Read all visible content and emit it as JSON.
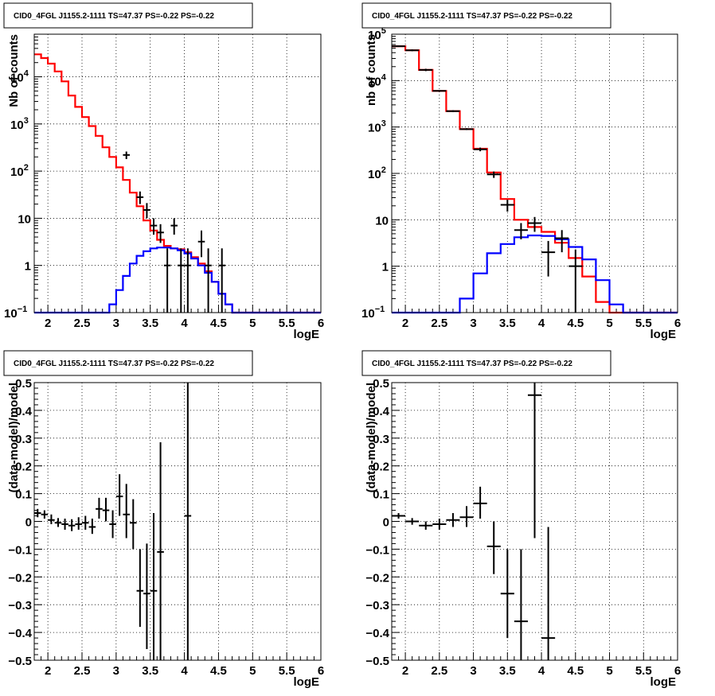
{
  "colors": {
    "data": "#000000",
    "total_model": "#ff0000",
    "source_model": "#0000ff",
    "grid": "#000000"
  },
  "chart_data": [
    {
      "id": "counts-fine",
      "type": "histogram",
      "title": "CID0_4FGL J1155.2-1111 TS=47.37 PS=-0.22 PS=-0.22",
      "xlabel": "logE",
      "ylabel": "Nb of counts",
      "xlim": [
        1.8,
        6.0
      ],
      "ylim": [
        0.1,
        80000
      ],
      "yscale": "log",
      "grid": true,
      "xticks": [
        {
          "v": 2,
          "label": "2"
        },
        {
          "v": 2.5,
          "label": "2.5"
        },
        {
          "v": 3,
          "label": "3"
        },
        {
          "v": 3.5,
          "label": "3.5"
        },
        {
          "v": 4,
          "label": "4"
        },
        {
          "v": 4.5,
          "label": "4.5"
        },
        {
          "v": 5,
          "label": "5"
        },
        {
          "v": 5.5,
          "label": "5.5"
        },
        {
          "v": 6,
          "label": "6"
        }
      ],
      "yticks": [
        {
          "v": 0.1,
          "base": "10",
          "exp": "−1"
        },
        {
          "v": 1,
          "base": "1",
          "exp": ""
        },
        {
          "v": 10,
          "base": "10",
          "exp": ""
        },
        {
          "v": 100,
          "base": "10",
          "exp": "2"
        },
        {
          "v": 1000,
          "base": "10",
          "exp": "3"
        },
        {
          "v": 10000,
          "base": "10",
          "exp": "4"
        }
      ],
      "bin_edges": [
        1.8,
        1.9,
        2.0,
        2.1,
        2.2,
        2.3,
        2.4,
        2.5,
        2.6,
        2.7,
        2.8,
        2.9,
        3.0,
        3.1,
        3.2,
        3.3,
        3.4,
        3.5,
        3.6,
        3.7,
        3.8,
        3.9,
        4.0,
        4.1,
        4.2,
        4.3,
        4.4,
        4.5,
        4.6,
        4.7,
        4.8,
        4.9,
        5.0,
        5.1,
        5.2,
        5.3,
        5.4,
        5.5,
        5.6,
        5.7,
        5.8,
        5.9,
        6.0
      ],
      "series": [
        {
          "role": "total_model",
          "values": [
            30000,
            25000,
            19000,
            13000,
            8000,
            4000,
            2300,
            1400,
            900,
            560,
            320,
            200,
            120,
            65,
            35,
            18,
            9,
            5.5,
            3.5,
            2.6,
            2.3,
            2.2,
            1.9,
            1.5,
            1.1,
            0.75,
            0.45,
            0.25,
            0.15,
            0.1,
            0.1,
            0.1,
            0.1,
            0.1,
            0.1,
            0.1,
            0.1,
            0.1,
            0.1,
            0.1,
            0.1,
            0.1
          ]
        },
        {
          "role": "source_model",
          "values": [
            0.1,
            0.1,
            0.1,
            0.1,
            0.1,
            0.1,
            0.1,
            0.1,
            0.1,
            0.1,
            0.1,
            0.15,
            0.3,
            0.6,
            1.1,
            1.6,
            2.0,
            2.3,
            2.4,
            2.4,
            2.3,
            2.1,
            1.8,
            1.4,
            1.0,
            0.7,
            0.45,
            0.25,
            0.15,
            0.1,
            0.1,
            0.1,
            0.1,
            0.1,
            0.1,
            0.1,
            0.1,
            0.1,
            0.1,
            0.1,
            0.1,
            0.1
          ]
        }
      ],
      "points": [
        {
          "x": 3.15,
          "y": 220,
          "xerr": 0.05,
          "ylo": 180,
          "yhi": 260
        },
        {
          "x": 3.35,
          "y": 28,
          "xerr": 0.05,
          "ylo": 20,
          "yhi": 37
        },
        {
          "x": 3.45,
          "y": 15,
          "xerr": 0.05,
          "ylo": 10,
          "yhi": 21
        },
        {
          "x": 3.55,
          "y": 7,
          "xerr": 0.05,
          "ylo": 4.5,
          "yhi": 10
        },
        {
          "x": 3.65,
          "y": 5,
          "xerr": 0.05,
          "ylo": 3,
          "yhi": 7.5
        },
        {
          "x": 3.75,
          "y": 1,
          "xerr": 0.05,
          "ylo": 0.1,
          "yhi": 2.3
        },
        {
          "x": 3.85,
          "y": 7,
          "xerr": 0.05,
          "ylo": 4.5,
          "yhi": 10
        },
        {
          "x": 3.95,
          "y": 1,
          "xerr": 0.05,
          "ylo": 0.1,
          "yhi": 2.3
        },
        {
          "x": 4.05,
          "y": 1,
          "xerr": 0.05,
          "ylo": 0.1,
          "yhi": 2.3
        },
        {
          "x": 4.25,
          "y": 3.2,
          "xerr": 0.05,
          "ylo": 1.5,
          "yhi": 5.5
        },
        {
          "x": 4.35,
          "y": 1,
          "xerr": 0.05,
          "ylo": 0.1,
          "yhi": 2.3
        },
        {
          "x": 4.55,
          "y": 1,
          "xerr": 0.05,
          "ylo": 0.1,
          "yhi": 2.3
        }
      ]
    },
    {
      "id": "counts-coarse",
      "type": "histogram",
      "title": "CID0_4FGL J1155.2-1111 TS=47.37 PS=-0.22 PS=-0.22",
      "xlabel": "logE",
      "ylabel": "nb of counts",
      "xlim": [
        1.8,
        6.0
      ],
      "ylim": [
        0.1,
        100000
      ],
      "yscale": "log",
      "grid": true,
      "xticks": [
        {
          "v": 2,
          "label": "2"
        },
        {
          "v": 2.5,
          "label": "2.5"
        },
        {
          "v": 3,
          "label": "3"
        },
        {
          "v": 3.5,
          "label": "3.5"
        },
        {
          "v": 4,
          "label": "4"
        },
        {
          "v": 4.5,
          "label": "4.5"
        },
        {
          "v": 5,
          "label": "5"
        },
        {
          "v": 5.5,
          "label": "5.5"
        },
        {
          "v": 6,
          "label": "6"
        }
      ],
      "yticks": [
        {
          "v": 0.1,
          "base": "10",
          "exp": "−1"
        },
        {
          "v": 1,
          "base": "1",
          "exp": ""
        },
        {
          "v": 10,
          "base": "10",
          "exp": ""
        },
        {
          "v": 100,
          "base": "10",
          "exp": "2"
        },
        {
          "v": 1000,
          "base": "10",
          "exp": "3"
        },
        {
          "v": 10000,
          "base": "10",
          "exp": "4"
        },
        {
          "v": 100000,
          "base": "10",
          "exp": "5"
        }
      ],
      "bin_edges": [
        1.8,
        2.0,
        2.2,
        2.4,
        2.6,
        2.8,
        3.0,
        3.2,
        3.4,
        3.6,
        3.8,
        4.0,
        4.2,
        4.4,
        4.6,
        4.8,
        5.0,
        5.2,
        5.4,
        5.6,
        5.8,
        6.0
      ],
      "series": [
        {
          "role": "total_model",
          "values": [
            55000,
            45000,
            17000,
            6000,
            2200,
            900,
            340,
            105,
            28,
            10,
            7,
            5.5,
            3.2,
            1.5,
            0.6,
            0.17,
            0.1,
            0.1,
            0.1,
            0.1,
            0.1
          ]
        },
        {
          "role": "source_model",
          "values": [
            0.1,
            0.1,
            0.1,
            0.1,
            0.1,
            0.2,
            0.7,
            1.9,
            3.0,
            4.2,
            4.6,
            4.5,
            3.8,
            2.6,
            1.4,
            0.5,
            0.15,
            0.1,
            0.1,
            0.1,
            0.1
          ]
        }
      ],
      "points": [
        {
          "x": 1.9,
          "y": 55000,
          "xerr": 0.1,
          "ylo": 53000,
          "yhi": 57000
        },
        {
          "x": 2.1,
          "y": 45000,
          "xerr": 0.1,
          "ylo": 43000,
          "yhi": 47000
        },
        {
          "x": 2.3,
          "y": 17000,
          "xerr": 0.1,
          "ylo": 16000,
          "yhi": 18000
        },
        {
          "x": 2.5,
          "y": 6000,
          "xerr": 0.1,
          "ylo": 5800,
          "yhi": 6200
        },
        {
          "x": 2.7,
          "y": 2200,
          "xerr": 0.1,
          "ylo": 2100,
          "yhi": 2300
        },
        {
          "x": 2.9,
          "y": 900,
          "xerr": 0.1,
          "ylo": 860,
          "yhi": 940
        },
        {
          "x": 3.1,
          "y": 330,
          "xerr": 0.1,
          "ylo": 300,
          "yhi": 360
        },
        {
          "x": 3.3,
          "y": 95,
          "xerr": 0.1,
          "ylo": 80,
          "yhi": 110
        },
        {
          "x": 3.5,
          "y": 21,
          "xerr": 0.1,
          "ylo": 15,
          "yhi": 27
        },
        {
          "x": 3.7,
          "y": 6,
          "xerr": 0.1,
          "ylo": 3.8,
          "yhi": 8.5
        },
        {
          "x": 3.9,
          "y": 8.5,
          "xerr": 0.1,
          "ylo": 5.5,
          "yhi": 11.5
        },
        {
          "x": 4.1,
          "y": 2,
          "xerr": 0.1,
          "ylo": 0.6,
          "yhi": 3.5
        },
        {
          "x": 4.3,
          "y": 4,
          "xerr": 0.1,
          "ylo": 2,
          "yhi": 6
        },
        {
          "x": 4.5,
          "y": 1,
          "xerr": 0.1,
          "ylo": 0.1,
          "yhi": 2.3
        }
      ]
    },
    {
      "id": "residuals-fine",
      "type": "scatter",
      "title": "CID0_4FGL J1155.2-1111 TS=47.37 PS=-0.22 PS=-0.22",
      "xlabel": "logE",
      "ylabel": "(data-model)/model",
      "xlim": [
        1.8,
        6.0
      ],
      "ylim": [
        -0.5,
        0.5
      ],
      "yscale": "linear",
      "grid": true,
      "xticks": [
        {
          "v": 2,
          "label": "2"
        },
        {
          "v": 2.5,
          "label": "2.5"
        },
        {
          "v": 3,
          "label": "3"
        },
        {
          "v": 3.5,
          "label": "3.5"
        },
        {
          "v": 4,
          "label": "4"
        },
        {
          "v": 4.5,
          "label": "4.5"
        },
        {
          "v": 5,
          "label": "5"
        },
        {
          "v": 5.5,
          "label": "5.5"
        },
        {
          "v": 6,
          "label": "6"
        }
      ],
      "yticks": [
        {
          "v": -0.5,
          "label": "−0.5"
        },
        {
          "v": -0.4,
          "label": "−0.4"
        },
        {
          "v": -0.3,
          "label": "−0.3"
        },
        {
          "v": -0.2,
          "label": "−0.2"
        },
        {
          "v": -0.1,
          "label": "−0.1"
        },
        {
          "v": 0,
          "label": "0"
        },
        {
          "v": 0.1,
          "label": "0.1"
        },
        {
          "v": 0.2,
          "label": "0.2"
        },
        {
          "v": 0.3,
          "label": "0.3"
        },
        {
          "v": 0.4,
          "label": "0.4"
        },
        {
          "v": 0.5,
          "label": "0.5"
        }
      ],
      "points": [
        {
          "x": 1.85,
          "y": 0.03,
          "xerr": 0.05,
          "ylo": 0.015,
          "yhi": 0.045
        },
        {
          "x": 1.95,
          "y": 0.025,
          "xerr": 0.05,
          "ylo": 0.01,
          "yhi": 0.04
        },
        {
          "x": 2.05,
          "y": 0.005,
          "xerr": 0.05,
          "ylo": -0.01,
          "yhi": 0.025
        },
        {
          "x": 2.15,
          "y": -0.005,
          "xerr": 0.05,
          "ylo": -0.02,
          "yhi": 0.012
        },
        {
          "x": 2.25,
          "y": -0.01,
          "xerr": 0.05,
          "ylo": -0.03,
          "yhi": 0.01
        },
        {
          "x": 2.35,
          "y": -0.015,
          "xerr": 0.05,
          "ylo": -0.035,
          "yhi": 0.008
        },
        {
          "x": 2.45,
          "y": -0.01,
          "xerr": 0.05,
          "ylo": -0.03,
          "yhi": 0.015
        },
        {
          "x": 2.55,
          "y": -0.005,
          "xerr": 0.05,
          "ylo": -0.03,
          "yhi": 0.02
        },
        {
          "x": 2.65,
          "y": -0.02,
          "xerr": 0.05,
          "ylo": -0.045,
          "yhi": 0.01
        },
        {
          "x": 2.75,
          "y": 0.045,
          "xerr": 0.05,
          "ylo": 0.01,
          "yhi": 0.085
        },
        {
          "x": 2.85,
          "y": 0.04,
          "xerr": 0.05,
          "ylo": 0.0,
          "yhi": 0.085
        },
        {
          "x": 2.95,
          "y": -0.01,
          "xerr": 0.05,
          "ylo": -0.06,
          "yhi": 0.04
        },
        {
          "x": 3.05,
          "y": 0.09,
          "xerr": 0.05,
          "ylo": 0.02,
          "yhi": 0.17
        },
        {
          "x": 3.15,
          "y": 0.025,
          "xerr": 0.05,
          "ylo": -0.06,
          "yhi": 0.135
        },
        {
          "x": 3.25,
          "y": -0.005,
          "xerr": 0.05,
          "ylo": -0.1,
          "yhi": 0.08
        },
        {
          "x": 3.35,
          "y": -0.25,
          "xerr": 0.05,
          "ylo": -0.38,
          "yhi": -0.1
        },
        {
          "x": 3.45,
          "y": -0.26,
          "xerr": 0.05,
          "ylo": -0.46,
          "yhi": -0.08
        },
        {
          "x": 3.55,
          "y": -0.25,
          "xerr": 0.05,
          "ylo": -0.5,
          "yhi": 0.03
        },
        {
          "x": 3.65,
          "y": -0.11,
          "xerr": 0.05,
          "ylo": -0.5,
          "yhi": 0.285
        },
        {
          "x": 4.05,
          "y": 0.02,
          "xerr": 0.05,
          "ylo": -0.5,
          "yhi": 0.5
        }
      ]
    },
    {
      "id": "residuals-coarse",
      "type": "scatter",
      "title": "CID0_4FGL J1155.2-1111 TS=47.37 PS=-0.22 PS=-0.22",
      "xlabel": "logE",
      "ylabel": "(data-model)/model",
      "xlim": [
        1.8,
        6.0
      ],
      "ylim": [
        -0.5,
        0.5
      ],
      "yscale": "linear",
      "grid": true,
      "xticks": [
        {
          "v": 2,
          "label": "2"
        },
        {
          "v": 2.5,
          "label": "2.5"
        },
        {
          "v": 3,
          "label": "3"
        },
        {
          "v": 3.5,
          "label": "3.5"
        },
        {
          "v": 4,
          "label": "4"
        },
        {
          "v": 4.5,
          "label": "4.5"
        },
        {
          "v": 5,
          "label": "5"
        },
        {
          "v": 5.5,
          "label": "5.5"
        },
        {
          "v": 6,
          "label": "6"
        }
      ],
      "yticks": [
        {
          "v": -0.5,
          "label": "−0.5"
        },
        {
          "v": -0.4,
          "label": "−0.4"
        },
        {
          "v": -0.3,
          "label": "−0.3"
        },
        {
          "v": -0.2,
          "label": "−0.2"
        },
        {
          "v": -0.1,
          "label": "−0.1"
        },
        {
          "v": 0,
          "label": "0"
        },
        {
          "v": 0.1,
          "label": "0.1"
        },
        {
          "v": 0.2,
          "label": "0.2"
        },
        {
          "v": 0.3,
          "label": "0.3"
        },
        {
          "v": 0.4,
          "label": "0.4"
        },
        {
          "v": 0.5,
          "label": "0.5"
        }
      ],
      "points": [
        {
          "x": 1.9,
          "y": 0.02,
          "xerr": 0.1,
          "ylo": 0.01,
          "yhi": 0.03
        },
        {
          "x": 2.1,
          "y": 0.0,
          "xerr": 0.1,
          "ylo": -0.012,
          "yhi": 0.012
        },
        {
          "x": 2.3,
          "y": -0.015,
          "xerr": 0.1,
          "ylo": -0.03,
          "yhi": 0.0
        },
        {
          "x": 2.5,
          "y": -0.01,
          "xerr": 0.1,
          "ylo": -0.03,
          "yhi": 0.01
        },
        {
          "x": 2.7,
          "y": 0.005,
          "xerr": 0.1,
          "ylo": -0.02,
          "yhi": 0.03
        },
        {
          "x": 2.9,
          "y": 0.015,
          "xerr": 0.1,
          "ylo": -0.02,
          "yhi": 0.055
        },
        {
          "x": 3.1,
          "y": 0.065,
          "xerr": 0.1,
          "ylo": 0.01,
          "yhi": 0.125
        },
        {
          "x": 3.3,
          "y": -0.09,
          "xerr": 0.1,
          "ylo": -0.19,
          "yhi": 0.0
        },
        {
          "x": 3.5,
          "y": -0.26,
          "xerr": 0.1,
          "ylo": -0.42,
          "yhi": -0.1
        },
        {
          "x": 3.7,
          "y": -0.36,
          "xerr": 0.1,
          "ylo": -0.5,
          "yhi": -0.1
        },
        {
          "x": 3.9,
          "y": 0.455,
          "xerr": 0.1,
          "ylo": -0.06,
          "yhi": 0.5
        },
        {
          "x": 4.1,
          "y": -0.42,
          "xerr": 0.1,
          "ylo": -0.5,
          "yhi": -0.02
        }
      ]
    }
  ]
}
